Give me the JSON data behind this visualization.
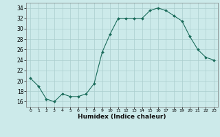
{
  "x": [
    0,
    1,
    2,
    3,
    4,
    5,
    6,
    7,
    8,
    9,
    10,
    11,
    12,
    13,
    14,
    15,
    16,
    17,
    18,
    19,
    20,
    21,
    22,
    23
  ],
  "y": [
    20.5,
    19.0,
    16.5,
    16.0,
    17.5,
    17.0,
    17.0,
    17.5,
    19.5,
    25.5,
    29.0,
    32.0,
    32.0,
    32.0,
    32.0,
    33.5,
    34.0,
    33.5,
    32.5,
    31.5,
    28.5,
    26.0,
    24.5,
    24.0
  ],
  "line_color": "#1a6b5a",
  "marker": "D",
  "marker_size": 2.0,
  "bg_color": "#cceaea",
  "grid_color": "#aacece",
  "xlabel": "Humidex (Indice chaleur)",
  "ylim": [
    15,
    35
  ],
  "xlim": [
    -0.5,
    23.5
  ],
  "yticks": [
    16,
    18,
    20,
    22,
    24,
    26,
    28,
    30,
    32,
    34
  ],
  "xticks": [
    0,
    1,
    2,
    3,
    4,
    5,
    6,
    7,
    8,
    9,
    10,
    11,
    12,
    13,
    14,
    15,
    16,
    17,
    18,
    19,
    20,
    21,
    22,
    23
  ]
}
